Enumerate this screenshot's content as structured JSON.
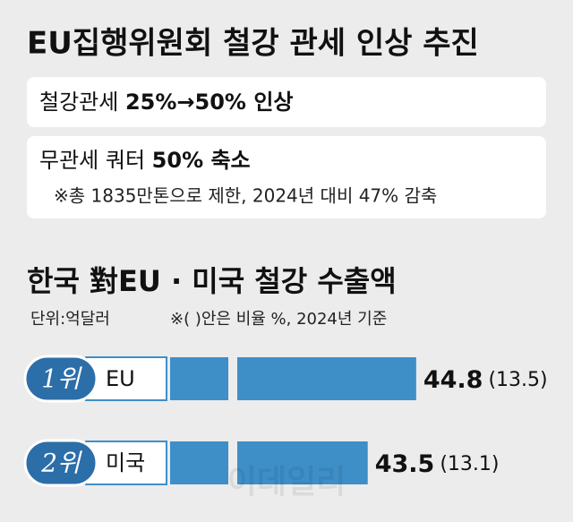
{
  "header": {
    "title": "EU집행위원회 철강 관세 인상 추진",
    "box1": {
      "text": "철강관세",
      "highlight": "25%→50% 인상"
    },
    "box2": {
      "text": "무관세 쿼터",
      "highlight": "50% 축소",
      "note": "※총 1835만톤으로 제한, 2024년 대비 47% 감축"
    }
  },
  "chart_data": {
    "type": "bar",
    "title": "한국 對EU · 미국 철강 수출액",
    "unit": "단위:억달러",
    "note": "※(  )안은 비율 %,  2024년 기준",
    "categories": [
      "EU",
      "미국"
    ],
    "ranks": [
      "1위",
      "2위"
    ],
    "values": [
      44.8,
      43.5
    ],
    "share_labels": [
      "(13.5)",
      "(13.1)"
    ],
    "color": "#3e8fc7",
    "xlim": [
      40,
      45.5
    ],
    "axis_break": true
  },
  "watermark": "이데일리"
}
